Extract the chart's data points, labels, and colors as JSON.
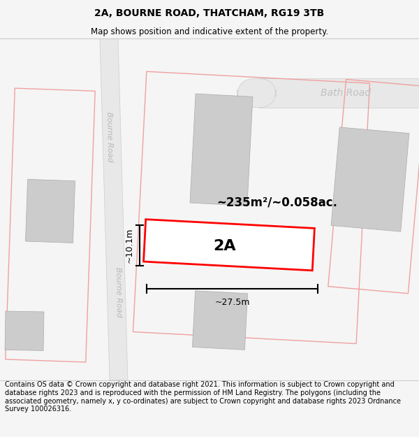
{
  "title": "2A, BOURNE ROAD, THATCHAM, RG19 3TB",
  "subtitle": "Map shows position and indicative extent of the property.",
  "footer": "Contains OS data © Crown copyright and database right 2021. This information is subject to Crown copyright and database rights 2023 and is reproduced with the permission of HM Land Registry. The polygons (including the associated geometry, namely x, y co-ordinates) are subject to Crown copyright and database rights 2023 Ordnance Survey 100026316.",
  "area_label": "~235m²/~0.058ac.",
  "plot_label": "2A",
  "width_label": "~27.5m",
  "height_label": "~10.1m",
  "road_label_bourne": "Bourne Road",
  "road_label_bath": "Bath Road",
  "bg_color": "#f5f5f5",
  "map_bg": "#ffffff",
  "road_fill": "#e8e8e8",
  "road_edge": "#cccccc",
  "plot_border_color": "#ff0000",
  "building_fill": "#cccccc",
  "building_edge": "#aaaaaa",
  "parcel_color": "#f0a0a0",
  "title_fontsize": 10,
  "subtitle_fontsize": 8.5,
  "footer_fontsize": 7,
  "area_fontsize": 12,
  "plot_fontsize": 16,
  "dim_fontsize": 9,
  "road_fontsize": 8
}
